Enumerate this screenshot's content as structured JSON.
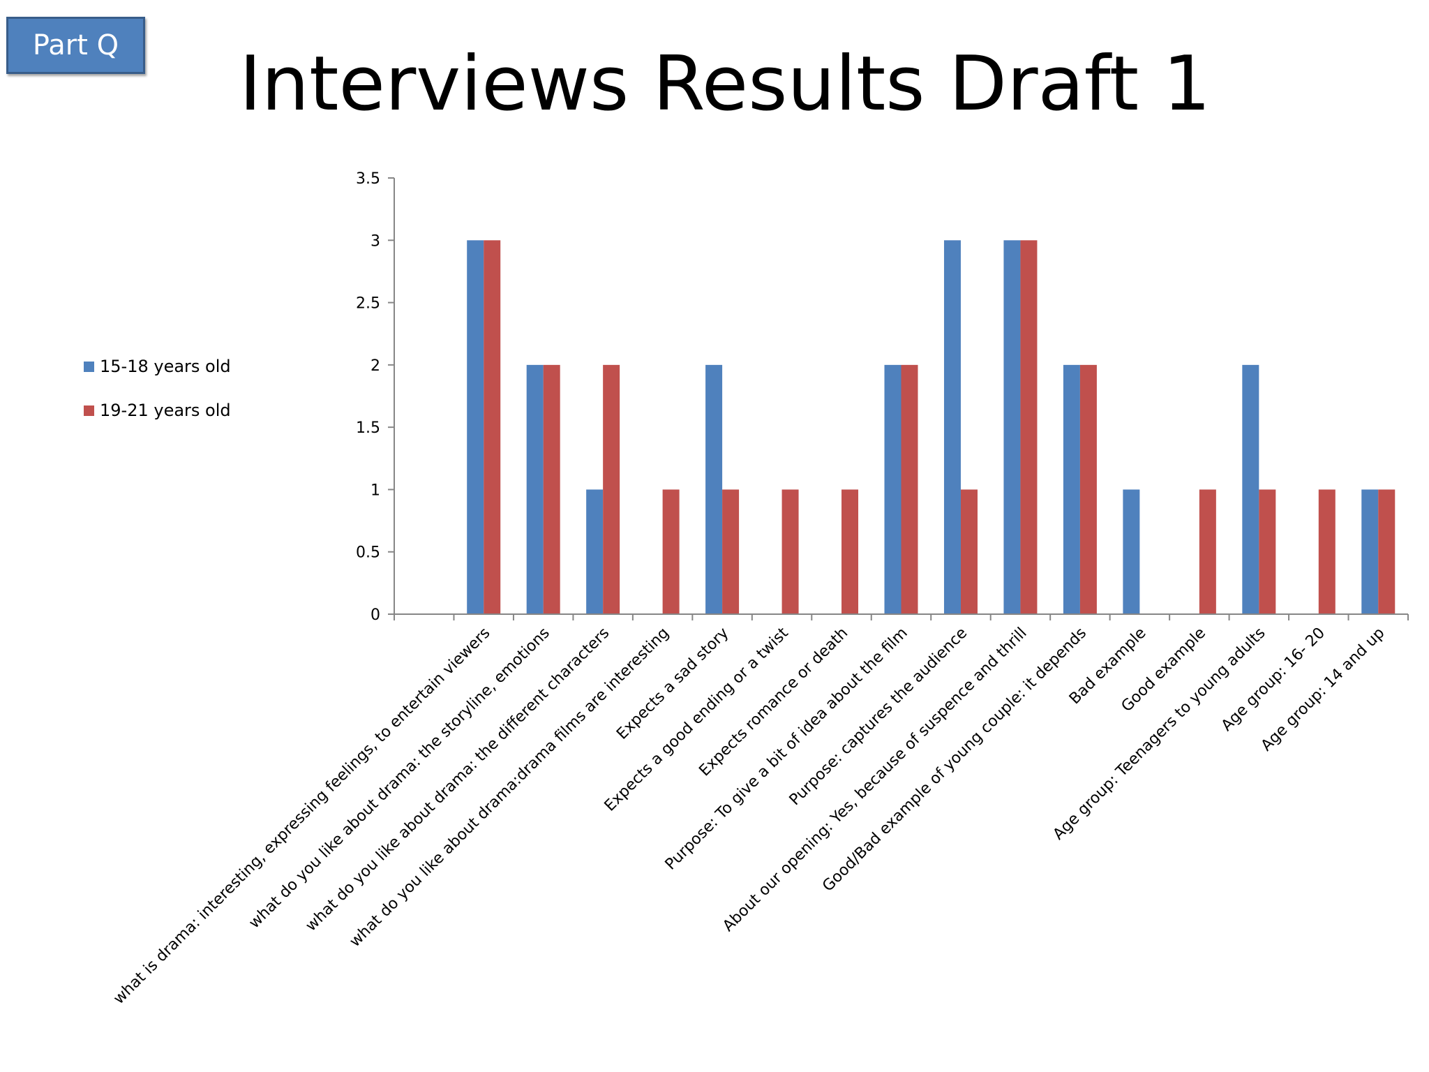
{
  "slide": {
    "badge_label": "Part Q",
    "title": "Interviews Results Draft 1"
  },
  "colors": {
    "series_1": "#4f81bd",
    "series_2": "#c0504d",
    "axis": "#868686"
  },
  "chart_data": {
    "type": "bar",
    "title": "",
    "xlabel": "",
    "ylabel": "",
    "ylim": [
      0,
      3.5
    ],
    "y_ticks": [
      "0",
      "0.5",
      "1",
      "1.5",
      "2",
      "2.5",
      "3",
      "3.5"
    ],
    "grid": false,
    "legend_position": "left",
    "categories": [
      "what is drama: interesting, expressing feelings, to entertain viewers",
      "what do you like about drama: the storyline, emotions",
      "what do you like about drama: the different characters",
      "what do you like about drama:drama films are interesting",
      "Expects a sad story",
      "Expects a good ending or a twist",
      "Expects romance or death",
      "Purpose: To give a bit of idea about the film",
      "Purpose: captures the audience",
      "About our opening: Yes, because of suspence and thrill",
      "Good/Bad example of young couple: it depends",
      "Bad example",
      "Good example",
      "Age group: Teenagers to young adults",
      "Age group: 16- 20",
      "Age group: 14 and up"
    ],
    "series": [
      {
        "name": "15-18 years old",
        "values": [
          3,
          2,
          1,
          0,
          2,
          0,
          0,
          2,
          3,
          3,
          2,
          1,
          0,
          2,
          0,
          1
        ]
      },
      {
        "name": "19-21 years old",
        "values": [
          3,
          2,
          2,
          1,
          1,
          1,
          1,
          2,
          1,
          3,
          2,
          0,
          1,
          1,
          1,
          1
        ]
      }
    ]
  }
}
